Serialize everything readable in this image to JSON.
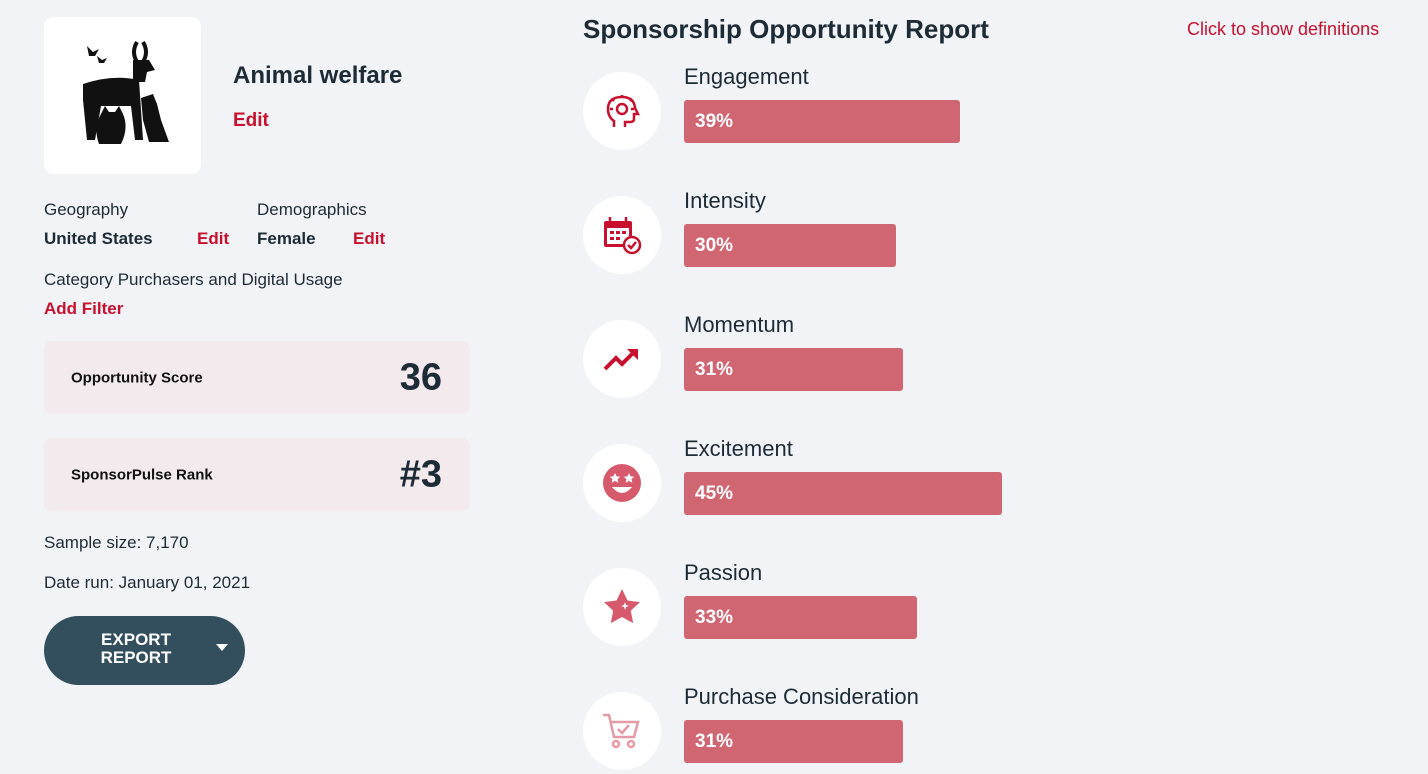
{
  "topic": {
    "title": "Animal welfare",
    "edit_label": "Edit",
    "logo_icon": "animal-silhouettes-icon"
  },
  "filters": {
    "geography": {
      "label": "Geography",
      "value": "United States",
      "edit_label": "Edit"
    },
    "demographics": {
      "label": "Demographics",
      "value": "Female",
      "edit_label": "Edit"
    },
    "category": {
      "label": "Category Purchasers and Digital Usage",
      "add_label": "Add Filter"
    }
  },
  "scores": {
    "opportunity": {
      "label": "Opportunity Score",
      "value": "36"
    },
    "rank": {
      "label": "SponsorPulse Rank",
      "value": "#3"
    }
  },
  "meta": {
    "sample_size": "Sample size: 7,170",
    "date_run": "Date run: January 01, 2021"
  },
  "export": {
    "label": "EXPORT REPORT",
    "icon": "caret-down-icon"
  },
  "report": {
    "title": "Sponsorship Opportunity Report",
    "definitions_link": "Click to show definitions",
    "bar_color": "#d16673",
    "metrics": [
      {
        "name": "Engagement",
        "value": 39,
        "label": "39%",
        "icon": "head-lightbulb-icon"
      },
      {
        "name": "Intensity",
        "value": 30,
        "label": "30%",
        "icon": "calendar-check-icon"
      },
      {
        "name": "Momentum",
        "value": 31,
        "label": "31%",
        "icon": "trending-up-icon"
      },
      {
        "name": "Excitement",
        "value": 45,
        "label": "45%",
        "icon": "star-eyes-face-icon"
      },
      {
        "name": "Passion",
        "value": 33,
        "label": "33%",
        "icon": "sparkle-star-icon"
      },
      {
        "name": "Purchase Consideration",
        "value": 31,
        "label": "31%",
        "icon": "shopping-cart-check-icon"
      }
    ]
  },
  "colors": {
    "accent": "#c8102e",
    "dark": "#1d2b36",
    "button": "#334f5e",
    "background": "#f2f3f6"
  }
}
